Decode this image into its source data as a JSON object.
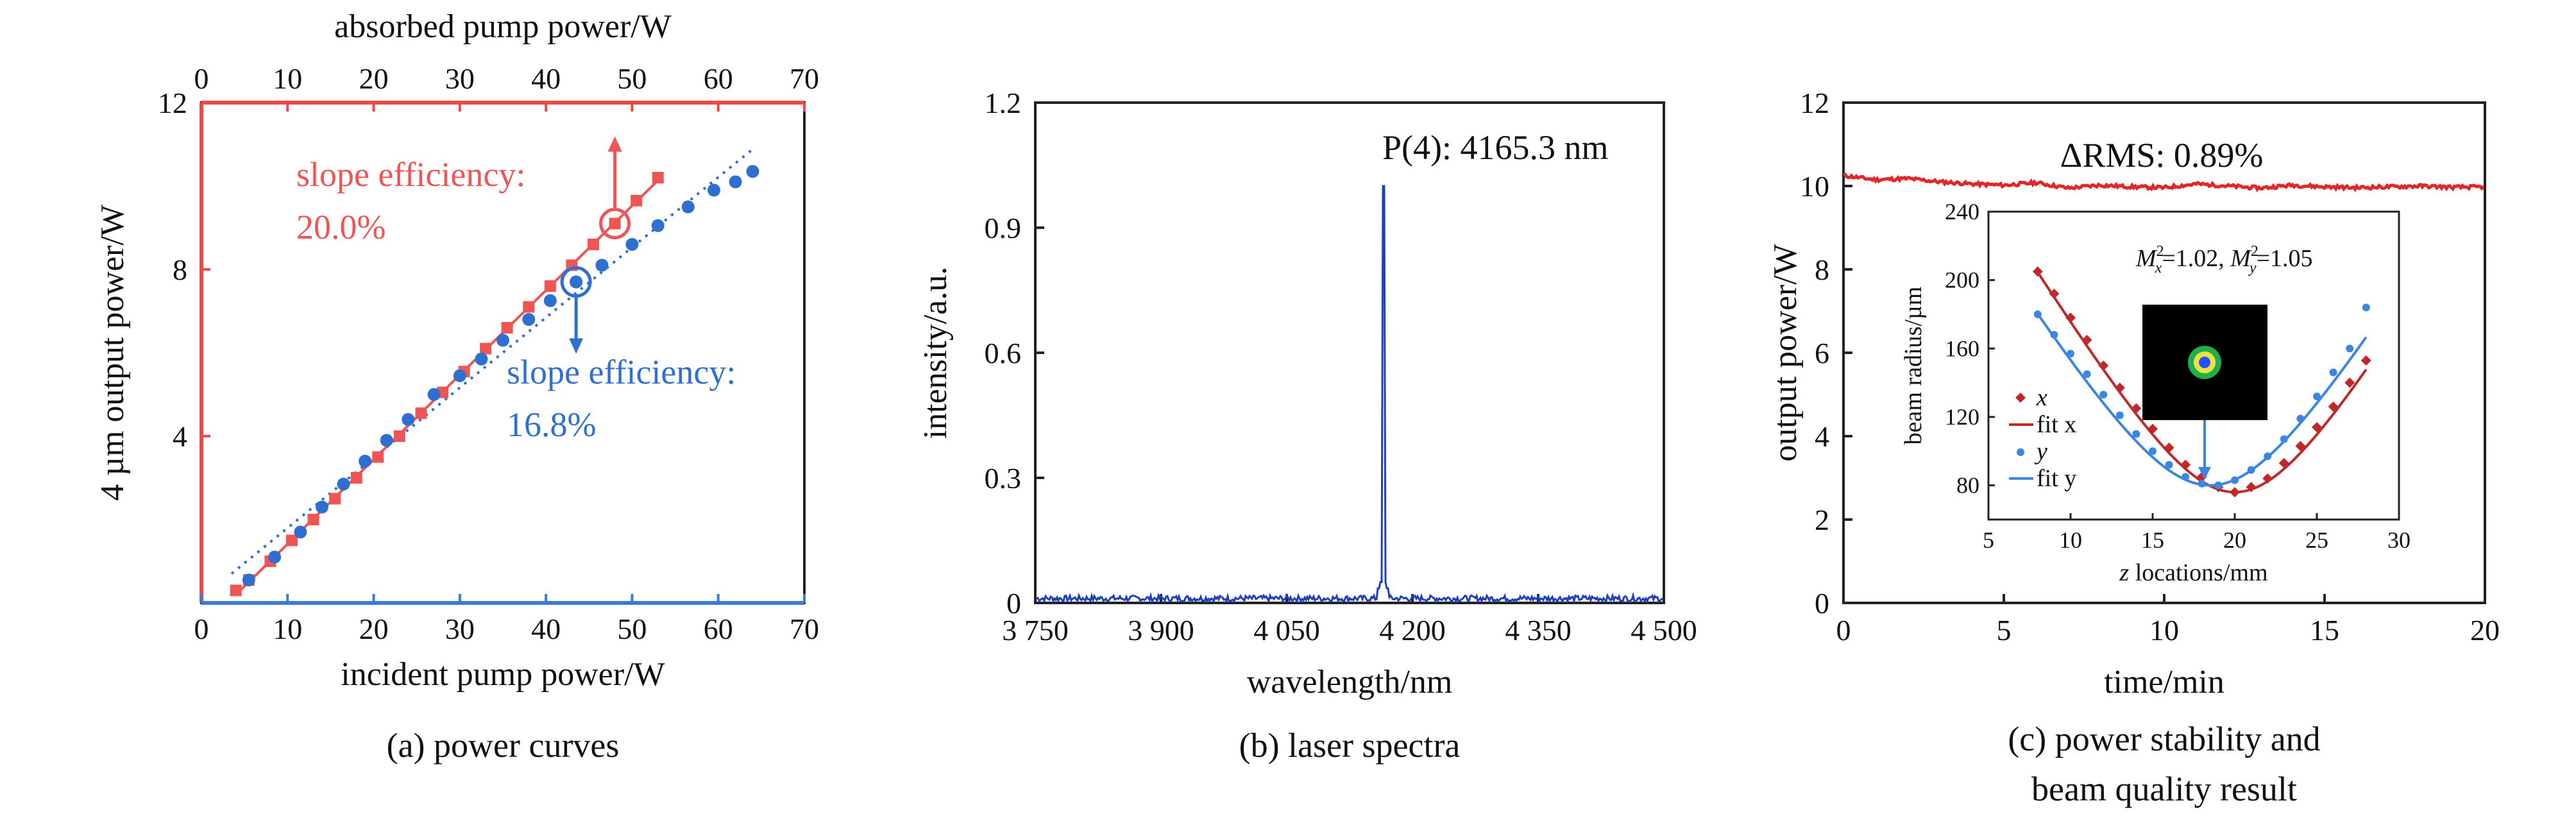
{
  "chart_data": [
    {
      "type": "line",
      "caption": "(a) power curves",
      "xlabel_bottom": "incident pump power/W",
      "xlabel_top": "absorbed pump power/W",
      "ylabel": "4 µm output power/W",
      "xlim": [
        0,
        70
      ],
      "top_xlim": [
        0,
        70
      ],
      "ylim": [
        0,
        12
      ],
      "xticks": [
        0,
        10,
        20,
        30,
        40,
        50,
        60,
        70
      ],
      "top_xticks": [
        0,
        10,
        20,
        30,
        40,
        50,
        60,
        70
      ],
      "yticks": [
        4,
        8,
        12
      ],
      "axis_colors": {
        "top": "#f04848",
        "bottom": "#3a7bd5",
        "left": "#f04848"
      },
      "series": [
        {
          "axis": "top",
          "color": "#f05555",
          "marker": "square",
          "fit": "solid",
          "x": [
            4,
            5.5,
            8,
            10.5,
            13,
            15.5,
            18,
            20.5,
            23,
            25.5,
            28,
            30.5,
            33,
            35.5,
            38,
            40.5,
            43,
            45.5,
            48,
            50.5,
            53
          ],
          "y": [
            0.3,
            0.55,
            1.0,
            1.5,
            2.0,
            2.5,
            3.0,
            3.5,
            4.0,
            4.55,
            5.05,
            5.55,
            6.1,
            6.6,
            7.1,
            7.6,
            8.1,
            8.6,
            9.1,
            9.65,
            10.2
          ]
        },
        {
          "axis": "bottom",
          "color": "#2f6fd0",
          "marker": "circle",
          "fit": "dotted",
          "x": [
            5.5,
            8.5,
            11.5,
            14,
            16.5,
            19,
            21.5,
            24,
            27,
            30,
            32.5,
            35,
            38,
            40.5,
            43.5,
            46.5,
            50,
            53,
            56.5,
            59.5,
            62,
            64
          ],
          "y": [
            0.55,
            1.1,
            1.7,
            2.3,
            2.85,
            3.4,
            3.9,
            4.4,
            5.0,
            5.45,
            5.85,
            6.3,
            6.8,
            7.25,
            7.7,
            8.1,
            8.6,
            9.05,
            9.5,
            9.9,
            10.1,
            10.35
          ]
        }
      ],
      "annotations": [
        {
          "text_line1": "slope efficiency:",
          "text_line2": "20.0%",
          "color": "#f05555"
        },
        {
          "text_line1": "slope efficiency:",
          "text_line2": "16.8%",
          "color": "#2f6fd0"
        }
      ]
    },
    {
      "type": "line",
      "caption": "(b) laser spectra",
      "xlabel": "wavelength/nm",
      "ylabel": "intensity/a.u.",
      "xlim": [
        3750,
        4500
      ],
      "ylim": [
        0,
        1.2
      ],
      "xtick_labels": [
        "3 750",
        "3 900",
        "4 050",
        "4 200",
        "4 350",
        "4 500"
      ],
      "xticks": [
        3750,
        3900,
        4050,
        4200,
        4350,
        4500
      ],
      "ytick_labels": [
        "0",
        "0.3",
        "0.6",
        "0.9",
        "1.2"
      ],
      "yticks": [
        0,
        0.3,
        0.6,
        0.9,
        1.2
      ],
      "peak": {
        "x": 4165.3,
        "y": 1.0,
        "label": "P(4): 4165.3 nm"
      },
      "noise_level": 0.012,
      "color": "#1f3fbf"
    },
    {
      "type": "line",
      "caption_line1": "(c) power stability and",
      "caption_line2": "beam quality result",
      "xlabel": "time/min",
      "ylabel": "output power/W",
      "xlim": [
        0,
        20
      ],
      "ylim": [
        0,
        12
      ],
      "xticks": [
        0,
        5,
        10,
        15,
        20
      ],
      "yticks": [
        2,
        4,
        6,
        8,
        10,
        12
      ],
      "series": [
        {
          "color": "#e02828",
          "x": [
            0,
            1,
            2,
            3,
            4,
            5,
            6,
            7,
            8,
            9,
            10,
            11,
            12,
            13,
            14,
            15,
            16,
            17,
            18,
            19,
            20
          ],
          "y": [
            10.25,
            10.15,
            10.18,
            10.1,
            10.05,
            10.02,
            10.08,
            9.95,
            10.02,
            9.98,
            9.96,
            10.05,
            10.0,
            9.95,
            10.02,
            9.98,
            9.96,
            9.98,
            10.0,
            9.97,
            9.98
          ]
        }
      ],
      "annotation": "ΔRMS: 0.89%",
      "inset": {
        "xlabel_var": "z",
        "xlabel_rest": " locations/mm",
        "ylabel": "beam radius/µm",
        "xlim": [
          5,
          30
        ],
        "ylim": [
          60,
          240
        ],
        "xticks": [
          5,
          10,
          15,
          20,
          25,
          30
        ],
        "yticks": [
          80,
          120,
          160,
          200,
          240
        ],
        "m2_x_prefix": "M",
        "m2_x_sub": "x",
        "m2_x_value": "=1.02, ",
        "m2_y_prefix": "M",
        "m2_y_sub": "y",
        "m2_y_value": "=1.05",
        "m2_sup": "2",
        "series": [
          {
            "name": "x",
            "fit_name": "fit x",
            "color": "#c0282a",
            "marker": "diamond",
            "w0": 76,
            "z0": 20.0,
            "zr": 4.8,
            "x": [
              8,
              9,
              10,
              11,
              12,
              13,
              14,
              15,
              16,
              17,
              18,
              19,
              20,
              21,
              22,
              23,
              24,
              25,
              26,
              27,
              28
            ],
            "y": [
              205,
              192,
              178,
              165,
              150,
              137,
              125,
              113,
              102,
              92,
              85,
              79,
              76,
              79,
              84,
              93,
              103,
              114,
              126,
              140,
              153
            ]
          },
          {
            "name": "y",
            "fit_name": "fit y",
            "color": "#3a86e0",
            "marker": "circle",
            "w0": 80,
            "z0": 18.5,
            "zr": 5.2,
            "x": [
              8,
              9,
              10,
              11,
              12,
              13,
              14,
              15,
              16,
              17,
              18,
              19,
              20,
              21,
              22,
              23,
              24,
              25,
              26,
              27,
              28
            ],
            "y": [
              180,
              168,
              157,
              145,
              133,
              121,
              110,
              100,
              92,
              85,
              81,
              80,
              83,
              89,
              97,
              107,
              119,
              132,
              146,
              160,
              184
            ]
          }
        ]
      }
    }
  ]
}
